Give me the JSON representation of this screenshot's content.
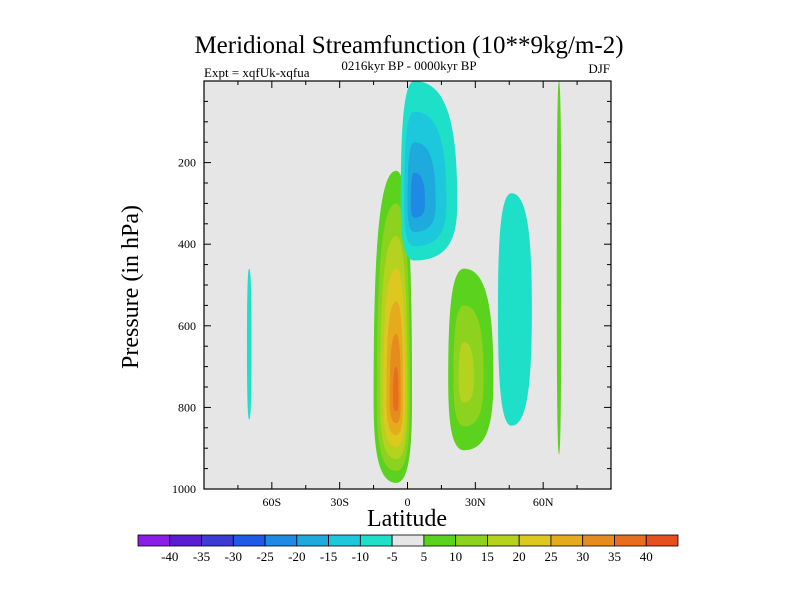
{
  "chart_data": {
    "type": "contour",
    "title": "Meridional Streamfunction (10**9kg/m-2)",
    "left_label": "Expt = xqfUk-xqfua",
    "center_label": "0216kyr BP - 0000kyr BP",
    "right_label": "DJF",
    "xlabel": "Latitude",
    "ylabel": "Pressure (in hPa)",
    "xlim": [
      -90,
      90
    ],
    "ylim": [
      1000,
      0
    ],
    "y_inverted": true,
    "xticks": [
      {
        "value": -60,
        "label": "60S"
      },
      {
        "value": -30,
        "label": "30S"
      },
      {
        "value": 0,
        "label": "0"
      },
      {
        "value": 30,
        "label": "30N"
      },
      {
        "value": 60,
        "label": "60N"
      }
    ],
    "yticks": [
      {
        "value": 200,
        "label": "200"
      },
      {
        "value": 400,
        "label": "400"
      },
      {
        "value": 600,
        "label": "600"
      },
      {
        "value": 800,
        "label": "800"
      },
      {
        "value": 1000,
        "label": "1000"
      }
    ],
    "background_color": "#e6e6e6",
    "contour_levels": [
      -40,
      -35,
      -30,
      -25,
      -20,
      -15,
      -10,
      -5,
      5,
      10,
      15,
      20,
      25,
      30,
      35,
      40
    ],
    "colorbar_colors": [
      "#8a1ee6",
      "#5a1ed2",
      "#3c3cd2",
      "#1e5ae6",
      "#1e8ae6",
      "#1eaadc",
      "#1ec8dc",
      "#1ee0c8",
      "#e6e6e6",
      "#5ad21e",
      "#8cd21e",
      "#b4d21e",
      "#dcc81e",
      "#e6aa1e",
      "#e68c1e",
      "#e66e1e",
      "#e6501e"
    ],
    "features": [
      {
        "name": "equatorial-positive-cell",
        "peak": 38,
        "lat": -5,
        "p": 780,
        "lat_range": [
          -15,
          2
        ],
        "p_range": [
          220,
          985
        ]
      },
      {
        "name": "upper-negative-cell",
        "peak": -20,
        "lat": 3,
        "p": 300,
        "lat_range": [
          -3,
          22
        ],
        "p_range": [
          0,
          440
        ]
      },
      {
        "name": "nh-positive-cell",
        "peak": 15,
        "lat": 25,
        "p": 730,
        "lat_range": [
          18,
          38
        ],
        "p_range": [
          460,
          905
        ]
      },
      {
        "name": "nh-negative-cell",
        "peak": -9,
        "lat": 46,
        "p": 560,
        "lat_range": [
          40,
          55
        ],
        "p_range": [
          275,
          845
        ]
      },
      {
        "name": "sh-negative-strip",
        "peak": -6,
        "lat": -70,
        "p": 650,
        "lat_range": [
          -71,
          -69
        ],
        "p_range": [
          460,
          830
        ]
      },
      {
        "name": "nh-positive-strip",
        "peak": 7,
        "lat": 67,
        "p": 450,
        "lat_range": [
          66,
          68
        ],
        "p_range": [
          0,
          915
        ]
      }
    ]
  }
}
